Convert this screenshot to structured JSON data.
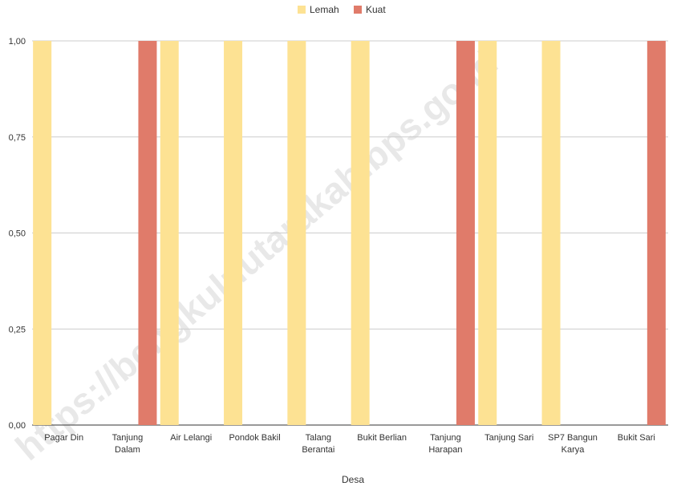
{
  "chart_data": {
    "type": "bar",
    "xlabel": "Desa",
    "ylabel": "",
    "ylim": [
      0,
      1
    ],
    "y_ticks": [
      "0,00",
      "0,25",
      "0,50",
      "0,75",
      "1,00"
    ],
    "y_tick_values": [
      0,
      0.25,
      0.5,
      0.75,
      1
    ],
    "grid": true,
    "legend_position": "top-center",
    "categories": [
      [
        "Pagar Din"
      ],
      [
        "Tanjung",
        "Dalam"
      ],
      [
        "Air Lelangi"
      ],
      [
        "Pondok Bakil"
      ],
      [
        "Talang",
        "Berantai"
      ],
      [
        "Bukit Berlian"
      ],
      [
        "Tanjung",
        "Harapan"
      ],
      [
        "Tanjung Sari"
      ],
      [
        "SP7 Bangun",
        "Karya"
      ],
      [
        "Bukit Sari"
      ]
    ],
    "series": [
      {
        "name": "Lemah",
        "color": "#fde293",
        "values": [
          1,
          0,
          1,
          1,
          1,
          1,
          0,
          1,
          1,
          0
        ]
      },
      {
        "name": "Kuat",
        "color": "#e07b6a",
        "values": [
          0,
          1,
          0,
          0,
          0,
          0,
          1,
          0,
          0,
          1
        ]
      }
    ]
  },
  "watermark": "https://bengkuluutarakab.bps.go.id"
}
